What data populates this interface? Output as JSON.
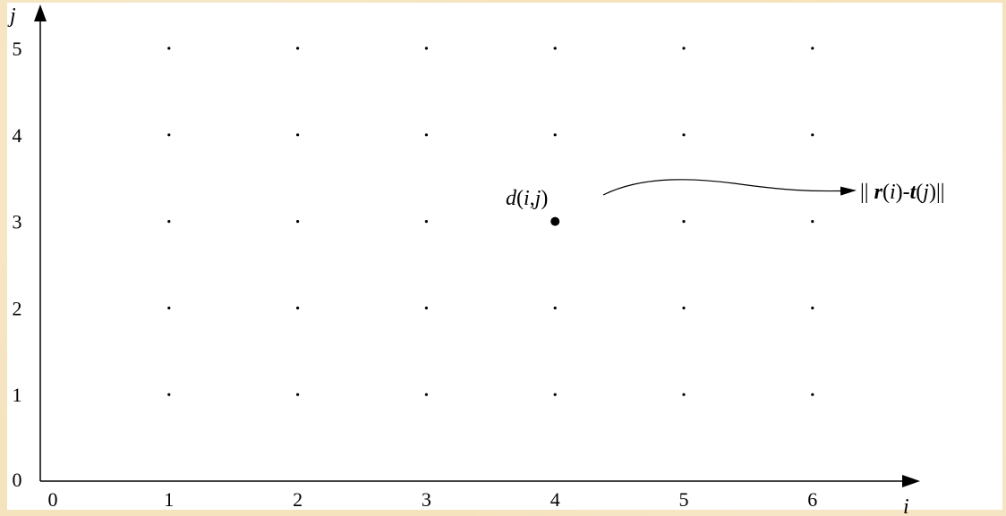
{
  "diagram": {
    "x_axis": {
      "name": "i",
      "origin_label": "0",
      "ticks": [
        "1",
        "2",
        "3",
        "4",
        "5",
        "6"
      ]
    },
    "y_axis": {
      "name": "j",
      "origin_label": "0",
      "ticks": [
        "1",
        "2",
        "3",
        "4",
        "5"
      ]
    },
    "highlighted_point": {
      "i": 4,
      "j": 3,
      "label": "d(i,j)"
    },
    "mapping_target": "|| r(i)-t(j)||"
  },
  "colors": {
    "background": "#f5e3bd",
    "panel": "#ffffff",
    "ink": "#000000"
  }
}
